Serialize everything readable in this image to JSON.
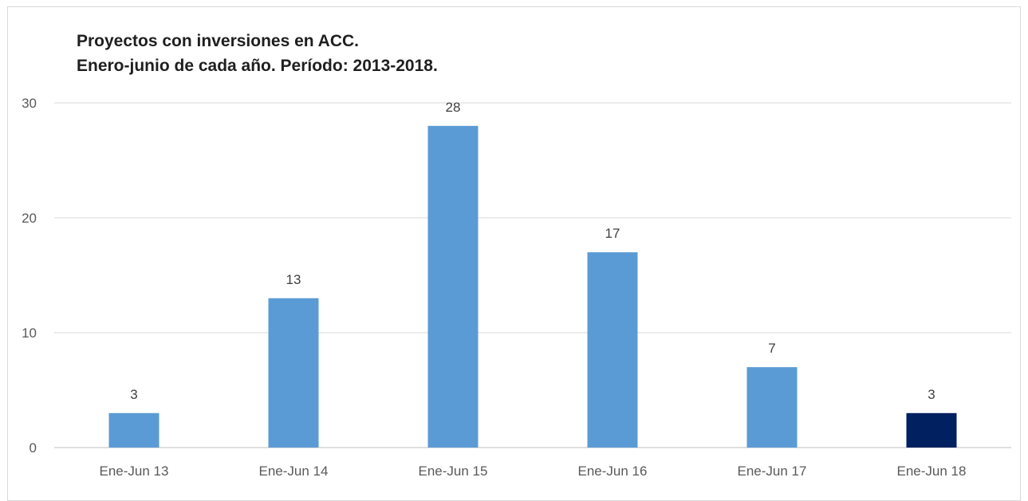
{
  "chart_data": {
    "type": "bar",
    "title_lines": [
      "Proyectos con inversiones en ACC.",
      "Enero-junio de cada año. Período: 2013-2018."
    ],
    "categories": [
      "Ene-Jun 13",
      "Ene-Jun 14",
      "Ene-Jun 15",
      "Ene-Jun 16",
      "Ene-Jun 17",
      "Ene-Jun 18"
    ],
    "values": [
      3,
      13,
      28,
      17,
      7,
      3
    ],
    "bar_colors": [
      "#5b9bd5",
      "#5b9bd5",
      "#5b9bd5",
      "#5b9bd5",
      "#5b9bd5",
      "#002060"
    ],
    "yticks": [
      0,
      10,
      20,
      30
    ],
    "ylim": [
      0,
      30
    ],
    "xlabel": "",
    "ylabel": "",
    "gridlines": true,
    "data_labels": true,
    "legend": "none"
  }
}
